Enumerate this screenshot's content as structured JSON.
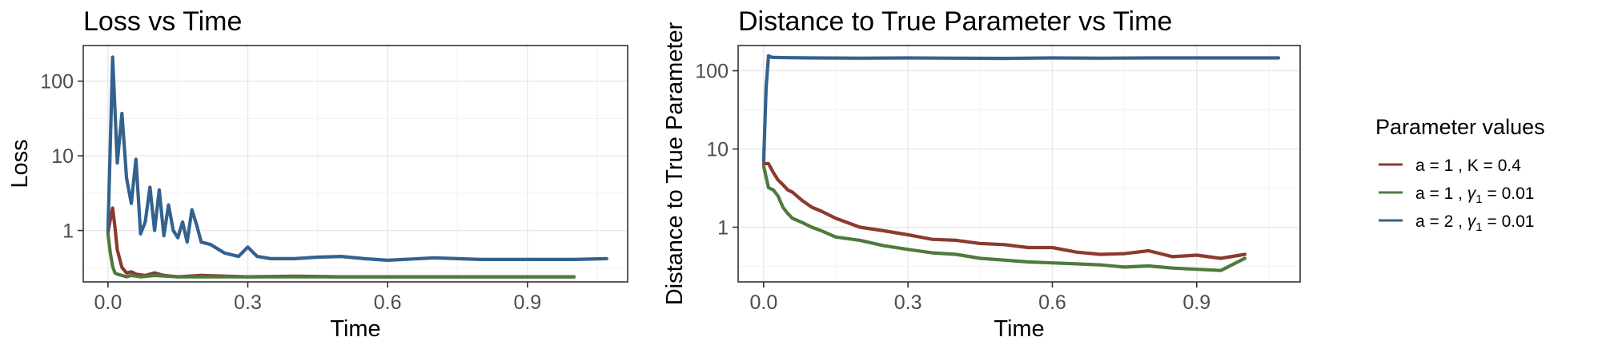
{
  "legend": {
    "title": "Parameter values",
    "items": [
      {
        "series": 0,
        "label_parts": [
          "a = 1 ,  ",
          "K",
          " = 0.4"
        ],
        "italic_index": -1
      },
      {
        "series": 1,
        "label_parts": [
          "a = 1 ,  ",
          "γ",
          "1",
          " = 0.01"
        ],
        "italic_index": 1,
        "sub_index": 2
      },
      {
        "series": 2,
        "label_parts": [
          "a = 2 ,  ",
          "γ",
          "1",
          " = 0.01"
        ],
        "italic_index": 1,
        "sub_index": 2
      }
    ]
  },
  "colors": [
    "#8b3a2f",
    "#4e7a3c",
    "#34628e"
  ],
  "chart_data": [
    {
      "type": "line",
      "title": "Loss vs Time",
      "xlabel": "Time",
      "ylabel": "Loss",
      "xscale": "linear",
      "yscale": "log10",
      "xlim": [
        -0.053,
        1.115
      ],
      "ylim": [
        0.205,
        300
      ],
      "xticks": [
        0.0,
        0.3,
        0.6,
        0.9
      ],
      "xtick_labels": [
        "0.0",
        "0.3",
        "0.6",
        "0.9"
      ],
      "yticks": [
        1,
        10,
        100
      ],
      "ytick_labels": [
        "1",
        "10",
        "100"
      ],
      "grid": true,
      "series": [
        {
          "x": [
            0.0,
            0.005,
            0.01,
            0.015,
            0.02,
            0.03,
            0.04,
            0.05,
            0.06,
            0.08,
            0.1,
            0.12,
            0.15,
            0.2,
            0.3,
            0.4,
            0.5,
            0.6,
            0.7,
            0.8,
            0.9,
            1.0
          ],
          "y": [
            0.95,
            1.4,
            2.0,
            1.1,
            0.55,
            0.32,
            0.27,
            0.28,
            0.26,
            0.25,
            0.27,
            0.25,
            0.24,
            0.25,
            0.24,
            0.245,
            0.24,
            0.24,
            0.24,
            0.24,
            0.24,
            0.24
          ]
        },
        {
          "x": [
            0.0,
            0.005,
            0.01,
            0.015,
            0.02,
            0.03,
            0.04,
            0.05,
            0.07,
            0.1,
            0.15,
            0.2,
            0.3,
            0.4,
            0.5,
            0.6,
            0.7,
            0.8,
            0.9,
            1.0
          ],
          "y": [
            0.9,
            0.5,
            0.33,
            0.27,
            0.26,
            0.25,
            0.24,
            0.25,
            0.24,
            0.25,
            0.24,
            0.24,
            0.24,
            0.24,
            0.24,
            0.24,
            0.24,
            0.24,
            0.24,
            0.24
          ]
        },
        {
          "x": [
            0.0,
            0.01,
            0.02,
            0.03,
            0.04,
            0.05,
            0.06,
            0.07,
            0.08,
            0.09,
            0.1,
            0.11,
            0.12,
            0.13,
            0.14,
            0.15,
            0.16,
            0.17,
            0.18,
            0.19,
            0.2,
            0.22,
            0.25,
            0.28,
            0.3,
            0.32,
            0.35,
            0.4,
            0.45,
            0.5,
            0.55,
            0.6,
            0.7,
            0.8,
            0.9,
            1.0,
            1.07
          ],
          "y": [
            1.0,
            210,
            8,
            37,
            5,
            2.3,
            9,
            0.9,
            1.3,
            3.8,
            1.0,
            3.5,
            0.85,
            2.2,
            1.0,
            0.8,
            1.3,
            0.7,
            1.9,
            1.2,
            0.7,
            0.65,
            0.5,
            0.45,
            0.6,
            0.45,
            0.42,
            0.42,
            0.44,
            0.45,
            0.42,
            0.4,
            0.43,
            0.41,
            0.41,
            0.41,
            0.42
          ]
        }
      ]
    },
    {
      "type": "line",
      "title": "Distance to True Parameter vs Time",
      "xlabel": "Time",
      "ylabel": "Distance to True Parameter",
      "xscale": "linear",
      "yscale": "log10",
      "xlim": [
        -0.053,
        1.115
      ],
      "ylim": [
        0.2,
        210
      ],
      "xticks": [
        0.0,
        0.3,
        0.6,
        0.9
      ],
      "xtick_labels": [
        "0.0",
        "0.3",
        "0.6",
        "0.9"
      ],
      "yticks": [
        1,
        10,
        100
      ],
      "ytick_labels": [
        "1",
        "10",
        "100"
      ],
      "grid": true,
      "series": [
        {
          "x": [
            0.0,
            0.01,
            0.02,
            0.03,
            0.04,
            0.05,
            0.06,
            0.08,
            0.1,
            0.12,
            0.15,
            0.2,
            0.25,
            0.3,
            0.35,
            0.4,
            0.45,
            0.5,
            0.55,
            0.6,
            0.65,
            0.7,
            0.75,
            0.8,
            0.85,
            0.9,
            0.95,
            1.0
          ],
          "y": [
            6.5,
            6.5,
            5.0,
            4.0,
            3.5,
            3.0,
            2.8,
            2.2,
            1.8,
            1.6,
            1.3,
            1.0,
            0.9,
            0.8,
            0.7,
            0.68,
            0.62,
            0.6,
            0.55,
            0.55,
            0.48,
            0.45,
            0.46,
            0.5,
            0.42,
            0.44,
            0.4,
            0.45
          ]
        },
        {
          "x": [
            0.0,
            0.01,
            0.02,
            0.03,
            0.04,
            0.05,
            0.06,
            0.08,
            0.1,
            0.12,
            0.15,
            0.2,
            0.25,
            0.3,
            0.35,
            0.4,
            0.45,
            0.5,
            0.55,
            0.6,
            0.65,
            0.7,
            0.75,
            0.8,
            0.85,
            0.9,
            0.95,
            1.0
          ],
          "y": [
            6.0,
            3.2,
            3.0,
            2.5,
            1.8,
            1.5,
            1.3,
            1.15,
            1.0,
            0.9,
            0.75,
            0.68,
            0.58,
            0.52,
            0.47,
            0.45,
            0.4,
            0.38,
            0.36,
            0.35,
            0.34,
            0.33,
            0.31,
            0.32,
            0.3,
            0.29,
            0.28,
            0.4
          ]
        },
        {
          "x": [
            0.0,
            0.005,
            0.01,
            0.015,
            0.02,
            0.05,
            0.1,
            0.2,
            0.3,
            0.4,
            0.5,
            0.6,
            0.7,
            0.8,
            0.9,
            1.0,
            1.07
          ],
          "y": [
            7.0,
            60,
            155,
            150,
            148,
            147,
            146,
            145,
            146,
            145,
            144,
            146,
            145,
            146,
            146,
            146,
            146
          ]
        }
      ]
    }
  ]
}
